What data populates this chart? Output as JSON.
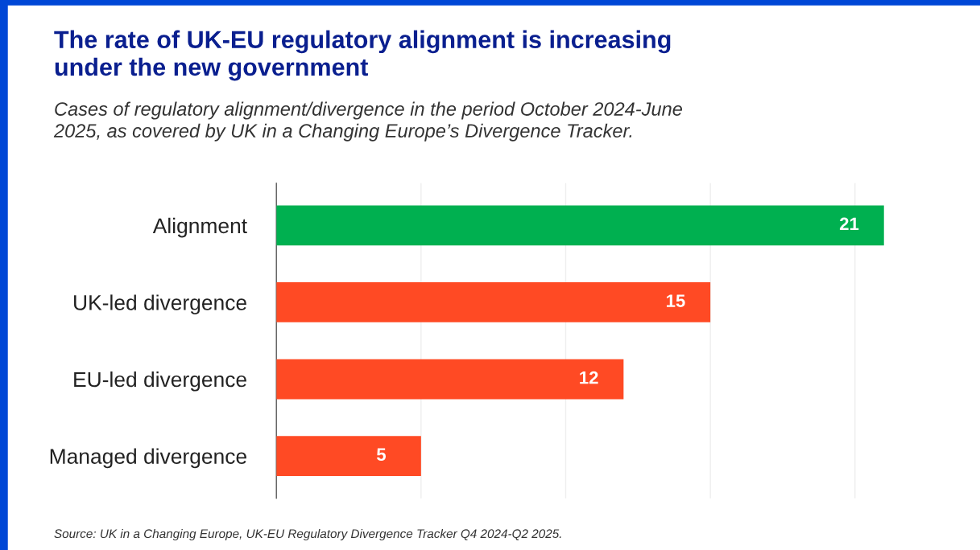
{
  "chart_data": {
    "type": "bar",
    "orientation": "horizontal",
    "title": "The rate of UK-EU regulatory alignment is increasing\nunder the new government",
    "subtitle": "Cases of regulatory alignment/divergence in the period October 2024-June\n2025, as covered by UK in a Changing Europe’s Divergence Tracker.",
    "categories": [
      "Alignment",
      "UK-led divergence",
      "EU-led divergence",
      "Managed divergence"
    ],
    "values": [
      21,
      15,
      12,
      5
    ],
    "colors": [
      "#00b050",
      "#ff4a24",
      "#ff4a24",
      "#ff4a24"
    ],
    "xticks": [
      {
        "value": 5,
        "label": null
      },
      {
        "value": 10,
        "label": null
      },
      {
        "value": 15,
        "label": null
      },
      {
        "value": 20,
        "label": null
      }
    ],
    "tick_labels": "y",
    "grid": "x",
    "data_labels": true,
    "legend": false,
    "annotations": [
      "Source: UK in a Changing Europe, UK-EU Regulatory Divergence Tracker Q4 2024-Q2 2025."
    ]
  }
}
